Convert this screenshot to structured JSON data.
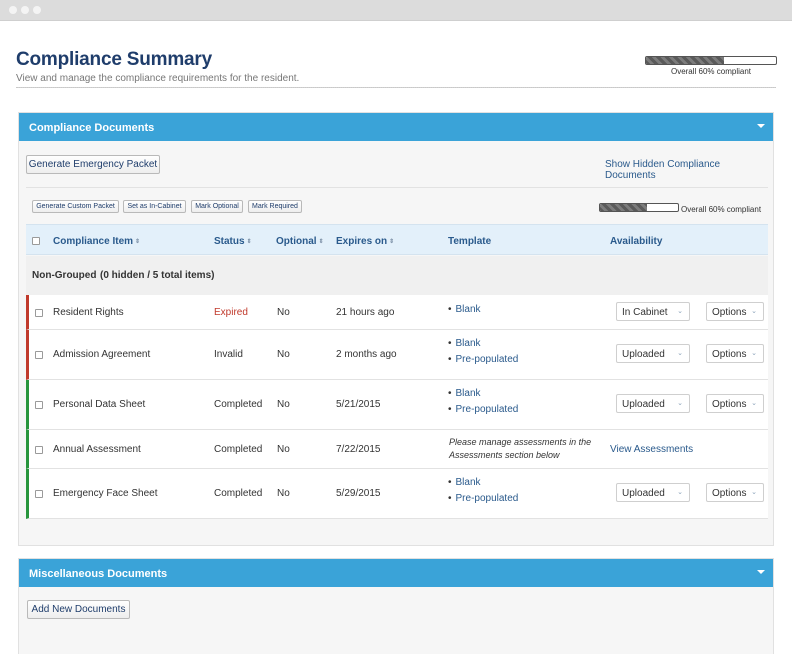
{
  "page": {
    "title": "Compliance Summary",
    "subtitle": "View and manage the compliance requirements for the resident.",
    "progress_label": "Overall 60% compliant",
    "progress_fraction": 0.6
  },
  "compliance_panel": {
    "header": "Compliance Documents",
    "generate_emergency": "Generate Emergency Packet",
    "show_hidden": "Show Hidden Compliance Documents",
    "actions": [
      "Generate Custom Packet",
      "Set as In-Cabinet",
      "Mark Optional",
      "Mark Required"
    ],
    "progress_label": "Overall 60% compliant",
    "progress_fraction": 0.6,
    "columns": {
      "item": "Compliance Item",
      "status": "Status",
      "optional": "Optional",
      "expires": "Expires on",
      "template": "Template",
      "availability": "Availability"
    },
    "sort_glyph": "⇕",
    "group": {
      "title": "Non-Grouped",
      "count": "(0 hidden / 5 total items)"
    },
    "rows": [
      {
        "item": "Resident Rights",
        "status": "Expired",
        "optional": "No",
        "expires": "21 hours ago",
        "templates": [
          "Blank"
        ],
        "availability": "In Cabinet",
        "options": "Options",
        "status_color": "#c0392b"
      },
      {
        "item": "Admission Agreement",
        "status": "Invalid",
        "optional": "No",
        "expires": "2 months ago",
        "templates": [
          "Blank",
          "Pre-populated"
        ],
        "availability": "Uploaded",
        "options": "Options",
        "status_color": "#c0392b"
      },
      {
        "item": "Personal Data Sheet",
        "status": "Completed",
        "optional": "No",
        "expires": "5/21/2015",
        "templates": [
          "Blank",
          "Pre-populated"
        ],
        "availability": "Uploaded",
        "options": "Options",
        "status_color": "#27953c"
      },
      {
        "item": "Annual Assessment",
        "status": "Completed",
        "optional": "No",
        "expires": "7/22/2015",
        "note_line1": "Please manage assessments in the",
        "note_line2": "Assessments section below",
        "view_link": "View Assessments",
        "status_color": "#27953c"
      },
      {
        "item": "Emergency Face Sheet",
        "status": "Completed",
        "optional": "No",
        "expires": "5/29/2015",
        "templates": [
          "Blank",
          "Pre-populated"
        ],
        "availability": "Uploaded",
        "options": "Options",
        "status_color": "#27953c"
      }
    ],
    "bullet": "•",
    "chevron": "⌄"
  },
  "misc_panel": {
    "header": "Miscellaneous Documents",
    "add_button": "Add New Documents"
  }
}
